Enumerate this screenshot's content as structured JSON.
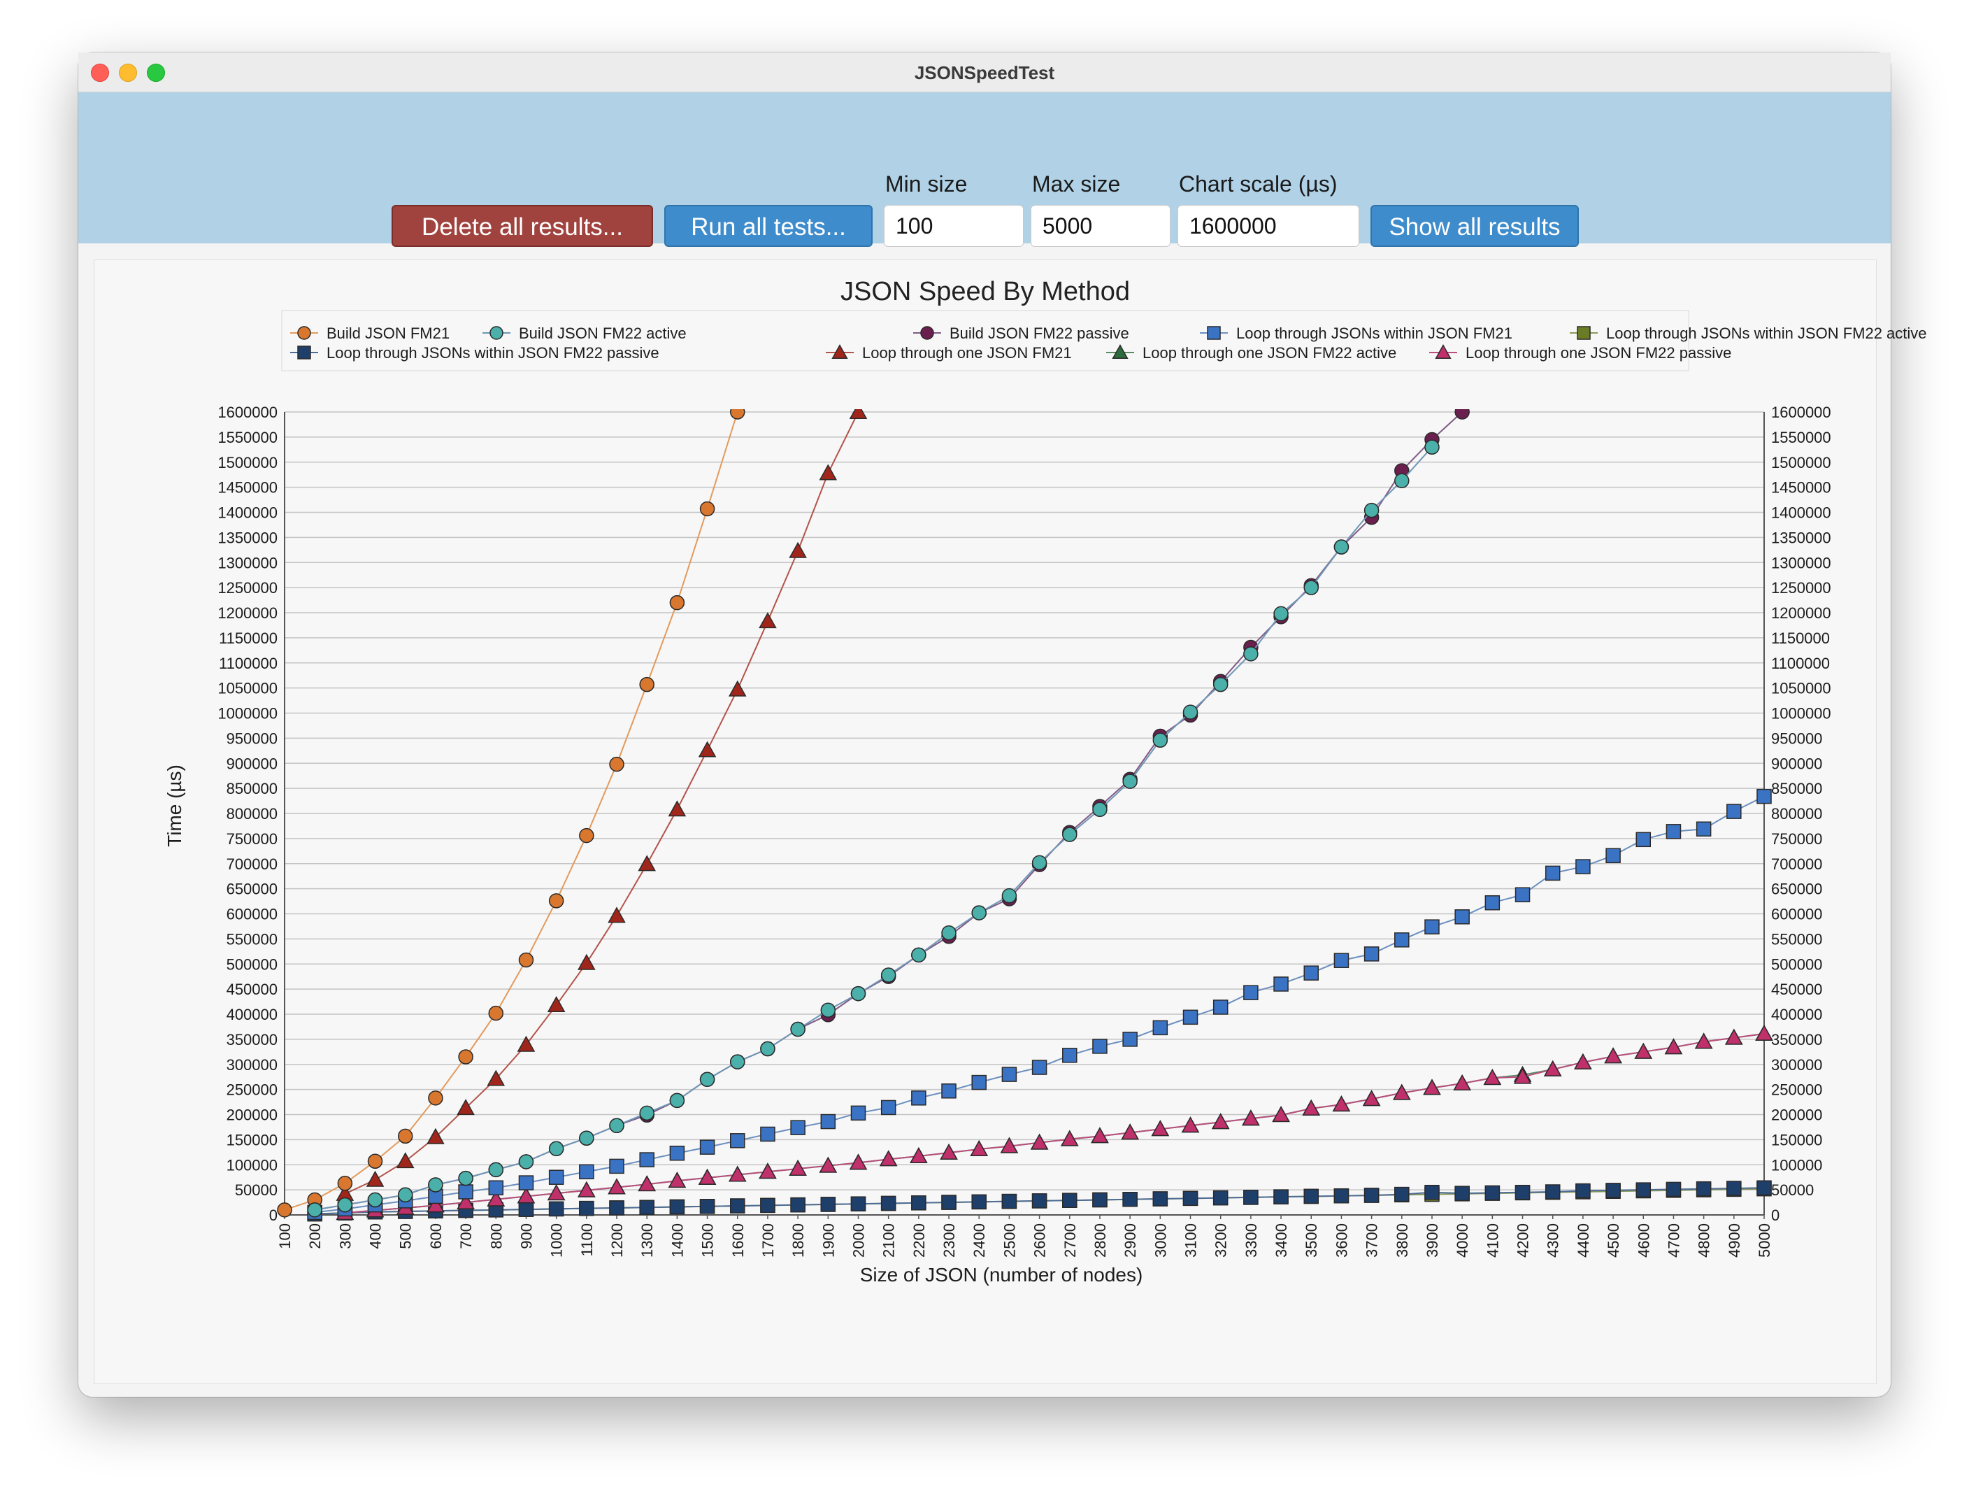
{
  "window": {
    "title": "JSONSpeedTest"
  },
  "toolbar": {
    "delete_label": "Delete all results...",
    "run_label": "Run all tests...",
    "show_label": "Show all results",
    "min_size_label": "Min size",
    "min_size_value": "100",
    "max_size_label": "Max size",
    "max_size_value": "5000",
    "scale_label": "Chart scale (µs)",
    "scale_value": "1600000"
  },
  "colors": {
    "toolbar_bg": "#b1d2e6",
    "danger": "#a0423d",
    "primary": "#3e8ccc"
  },
  "chart_data": {
    "type": "line",
    "title": "JSON Speed By Method",
    "xlabel": "Size of JSON (number of nodes)",
    "ylabel": "Time (µs)",
    "xlim": [
      100,
      5000
    ],
    "ylim": [
      0,
      1600000
    ],
    "x_ticks": [
      100,
      200,
      300,
      400,
      500,
      600,
      700,
      800,
      900,
      1000,
      1100,
      1200,
      1300,
      1400,
      1500,
      1600,
      1700,
      1800,
      1900,
      2000,
      2100,
      2200,
      2300,
      2400,
      2500,
      2600,
      2700,
      2800,
      2900,
      3000,
      3100,
      3200,
      3300,
      3400,
      3500,
      3600,
      3700,
      3800,
      3900,
      4000,
      4100,
      4200,
      4300,
      4400,
      4500,
      4600,
      4700,
      4800,
      4900,
      5000
    ],
    "y_ticks": [
      0,
      50000,
      100000,
      150000,
      200000,
      250000,
      300000,
      350000,
      400000,
      450000,
      500000,
      550000,
      600000,
      650000,
      700000,
      750000,
      800000,
      850000,
      900000,
      950000,
      1000000,
      1050000,
      1100000,
      1150000,
      1200000,
      1250000,
      1300000,
      1350000,
      1400000,
      1450000,
      1500000,
      1550000,
      1600000
    ],
    "grid": true,
    "legend_position": "top",
    "series": [
      {
        "name": "Build JSON FM21",
        "marker": "circle",
        "color": "#d9772e",
        "line_color": "#e39a5c",
        "x": [
          100,
          200,
          300,
          400,
          500,
          600,
          700,
          800,
          900,
          1000,
          1100,
          1200,
          1300,
          1400,
          1500,
          1600
        ],
        "y": [
          10000,
          30000,
          63000,
          107000,
          157000,
          233000,
          315000,
          402000,
          508000,
          626000,
          756000,
          898000,
          1057000,
          1220000,
          1407000,
          1600000
        ]
      },
      {
        "name": "Build JSON FM22 active",
        "marker": "circle",
        "color": "#4bb0aa",
        "line_color": "#6f96b6",
        "x": [
          200,
          300,
          400,
          500,
          600,
          700,
          800,
          900,
          1000,
          1100,
          1200,
          1300,
          1400,
          1500,
          1600,
          1700,
          1800,
          1900,
          2000,
          2100,
          2200,
          2300,
          2400,
          2500,
          2600,
          2700,
          2800,
          2900,
          3000,
          3100,
          3200,
          3300,
          3400,
          3500,
          3600,
          3700,
          3800,
          3900
        ],
        "y": [
          10000,
          20000,
          30000,
          40000,
          60000,
          73000,
          90000,
          106000,
          132000,
          153000,
          178000,
          203000,
          228000,
          270000,
          305000,
          331000,
          370000,
          408000,
          441000,
          478000,
          518000,
          562000,
          602000,
          636000,
          702000,
          758000,
          808000,
          864000,
          946000,
          1002000,
          1057000,
          1118000,
          1198000,
          1250000,
          1331000,
          1404000,
          1463000,
          1530000
        ]
      },
      {
        "name": "Build JSON FM22 passive",
        "marker": "circle",
        "color": "#6b1f4f",
        "line_color": "#7f5a84",
        "x": [
          200,
          300,
          400,
          500,
          600,
          700,
          800,
          900,
          1000,
          1100,
          1200,
          1300,
          1400,
          1500,
          1600,
          1700,
          1800,
          1900,
          2000,
          2100,
          2200,
          2300,
          2400,
          2500,
          2600,
          2700,
          2800,
          2900,
          3000,
          3100,
          3200,
          3300,
          3400,
          3500,
          3600,
          3700,
          3800,
          3900,
          4000
        ],
        "y": [
          10000,
          20000,
          30000,
          40000,
          60000,
          73000,
          90000,
          106000,
          132000,
          153000,
          178000,
          199000,
          228000,
          270000,
          305000,
          331000,
          370000,
          399000,
          441000,
          475000,
          518000,
          555000,
          602000,
          630000,
          698000,
          762000,
          814000,
          868000,
          954000,
          996000,
          1063000,
          1131000,
          1192000,
          1254000,
          1331000,
          1390000,
          1483000,
          1545000,
          1600000
        ]
      },
      {
        "name": "Loop through JSONs within JSON FM21",
        "marker": "square",
        "color": "#3b73c4",
        "line_color": "#6c8fbf",
        "x": [
          200,
          300,
          400,
          500,
          600,
          700,
          800,
          900,
          1000,
          1100,
          1200,
          1300,
          1400,
          1500,
          1600,
          1700,
          1800,
          1900,
          2000,
          2100,
          2200,
          2300,
          2400,
          2500,
          2600,
          2700,
          2800,
          2900,
          3000,
          3100,
          3200,
          3300,
          3400,
          3500,
          3600,
          3700,
          3800,
          3900,
          4000,
          4100,
          4200,
          4300,
          4400,
          4500,
          4600,
          4700,
          4800,
          4900,
          5000
        ],
        "y": [
          5000,
          12000,
          20000,
          28000,
          37000,
          46000,
          54000,
          64000,
          75000,
          86000,
          97000,
          110000,
          123000,
          135000,
          148000,
          161000,
          174000,
          186000,
          203000,
          214000,
          233000,
          247000,
          264000,
          280000,
          294000,
          318000,
          336000,
          350000,
          373000,
          394000,
          414000,
          443000,
          460000,
          482000,
          507000,
          520000,
          548000,
          574000,
          594000,
          622000,
          638000,
          681000,
          694000,
          716000,
          748000,
          764000,
          769000,
          804000,
          834000
        ]
      },
      {
        "name": "Loop through JSONs within JSON FM22 active",
        "marker": "square",
        "color": "#6b7c26",
        "line_color": "#8a9a5a",
        "x": [
          200,
          300,
          400,
          500,
          600,
          700,
          800,
          900,
          1000,
          1100,
          1200,
          1300,
          1400,
          1500,
          1600,
          1700,
          1800,
          1900,
          2000,
          2100,
          2200,
          2300,
          2400,
          2500,
          2600,
          2700,
          2800,
          2900,
          3000,
          3100,
          3200,
          3300,
          3400,
          3500,
          3600,
          3700,
          3800,
          3900,
          4000,
          4100,
          4200,
          4300,
          4400,
          4500,
          4600,
          4700,
          4800,
          4900,
          5000
        ],
        "y": [
          2000,
          4000,
          6000,
          7000,
          8000,
          9000,
          10000,
          11000,
          12000,
          13000,
          14000,
          15000,
          16000,
          17000,
          18000,
          19000,
          20000,
          21000,
          22000,
          23000,
          24000,
          25000,
          26000,
          27000,
          28000,
          29000,
          30000,
          31000,
          32000,
          33000,
          34000,
          35000,
          36000,
          37000,
          38000,
          39000,
          40000,
          41000,
          42000,
          43000,
          44000,
          45000,
          46000,
          47000,
          48000,
          49000,
          50000,
          51000,
          52000
        ]
      },
      {
        "name": "Loop through JSONs within JSON FM22 passive",
        "marker": "square",
        "color": "#1f3f6b",
        "line_color": "#4d6c96",
        "x": [
          200,
          300,
          400,
          500,
          600,
          700,
          800,
          900,
          1000,
          1100,
          1200,
          1300,
          1400,
          1500,
          1600,
          1700,
          1800,
          1900,
          2000,
          2100,
          2200,
          2300,
          2400,
          2500,
          2600,
          2700,
          2800,
          2900,
          3000,
          3100,
          3200,
          3300,
          3400,
          3500,
          3600,
          3700,
          3800,
          3900,
          4000,
          4100,
          4200,
          4300,
          4400,
          4500,
          4600,
          4700,
          4800,
          4900,
          5000
        ],
        "y": [
          2000,
          4000,
          6000,
          7000,
          8000,
          9000,
          10000,
          11000,
          12000,
          13000,
          14000,
          15000,
          16000,
          17000,
          18000,
          19000,
          20000,
          21000,
          22000,
          23000,
          24000,
          25000,
          26000,
          27000,
          28000,
          29000,
          30000,
          31000,
          32000,
          33000,
          34000,
          35000,
          36000,
          37000,
          38000,
          39000,
          41000,
          45000,
          43000,
          44000,
          45000,
          46000,
          48000,
          49000,
          50000,
          51000,
          52000,
          53000,
          54000
        ]
      },
      {
        "name": "Loop through one JSON FM21",
        "marker": "triangle",
        "color": "#a0261b",
        "line_color": "#b3534a",
        "x": [
          300,
          400,
          500,
          600,
          700,
          800,
          900,
          1000,
          1100,
          1200,
          1300,
          1400,
          1500,
          1600,
          1700,
          1800,
          1900,
          2000
        ],
        "y": [
          42000,
          70000,
          107000,
          155000,
          213000,
          271000,
          339000,
          418000,
          502000,
          596000,
          699000,
          808000,
          926000,
          1047000,
          1183000,
          1323000,
          1478000,
          1600000
        ]
      },
      {
        "name": "Loop through one JSON FM22 active",
        "marker": "triangle",
        "color": "#2e6b3c",
        "line_color": "#5a8a66",
        "x": [
          300,
          400,
          500,
          600,
          700,
          800,
          900,
          1000,
          1100,
          1200,
          1300,
          1400,
          1500,
          1600,
          1700,
          1800,
          1900,
          2000,
          2100,
          2200,
          2300,
          2400,
          2500,
          2600,
          2700,
          2800,
          2900,
          3000,
          3100,
          3200,
          3300,
          3400,
          3500,
          3600,
          3700,
          3800,
          3900,
          4000,
          4100,
          4200,
          4300,
          4400,
          4500,
          4600,
          4700,
          4800,
          4900,
          5000
        ],
        "y": [
          4000,
          9000,
          14000,
          19000,
          25000,
          31000,
          37000,
          43000,
          49000,
          55000,
          61000,
          68000,
          74000,
          80000,
          86000,
          92000,
          98000,
          104000,
          111000,
          117000,
          124000,
          131000,
          137000,
          144000,
          151000,
          157000,
          164000,
          171000,
          178000,
          185000,
          192000,
          199000,
          212000,
          220000,
          231000,
          243000,
          253000,
          262000,
          273000,
          279000,
          290000,
          304000,
          316000,
          325000,
          334000,
          345000,
          353000,
          361000
        ]
      },
      {
        "name": "Loop through one JSON FM22 passive",
        "marker": "triangle",
        "color": "#c0306a",
        "line_color": "#b94f7c",
        "x": [
          300,
          400,
          500,
          600,
          700,
          800,
          900,
          1000,
          1100,
          1200,
          1300,
          1400,
          1500,
          1600,
          1700,
          1800,
          1900,
          2000,
          2100,
          2200,
          2300,
          2400,
          2500,
          2600,
          2700,
          2800,
          2900,
          3000,
          3100,
          3200,
          3300,
          3400,
          3500,
          3600,
          3700,
          3800,
          3900,
          4000,
          4100,
          4200,
          4300,
          4400,
          4500,
          4600,
          4700,
          4800,
          4900,
          5000
        ],
        "y": [
          4000,
          9000,
          14000,
          19000,
          25000,
          31000,
          37000,
          43000,
          49000,
          55000,
          61000,
          68000,
          74000,
          80000,
          86000,
          92000,
          98000,
          104000,
          111000,
          117000,
          124000,
          131000,
          137000,
          144000,
          151000,
          157000,
          164000,
          171000,
          178000,
          185000,
          192000,
          199000,
          212000,
          220000,
          231000,
          243000,
          253000,
          262000,
          273000,
          275000,
          290000,
          304000,
          316000,
          325000,
          334000,
          345000,
          353000,
          361000
        ]
      }
    ]
  }
}
